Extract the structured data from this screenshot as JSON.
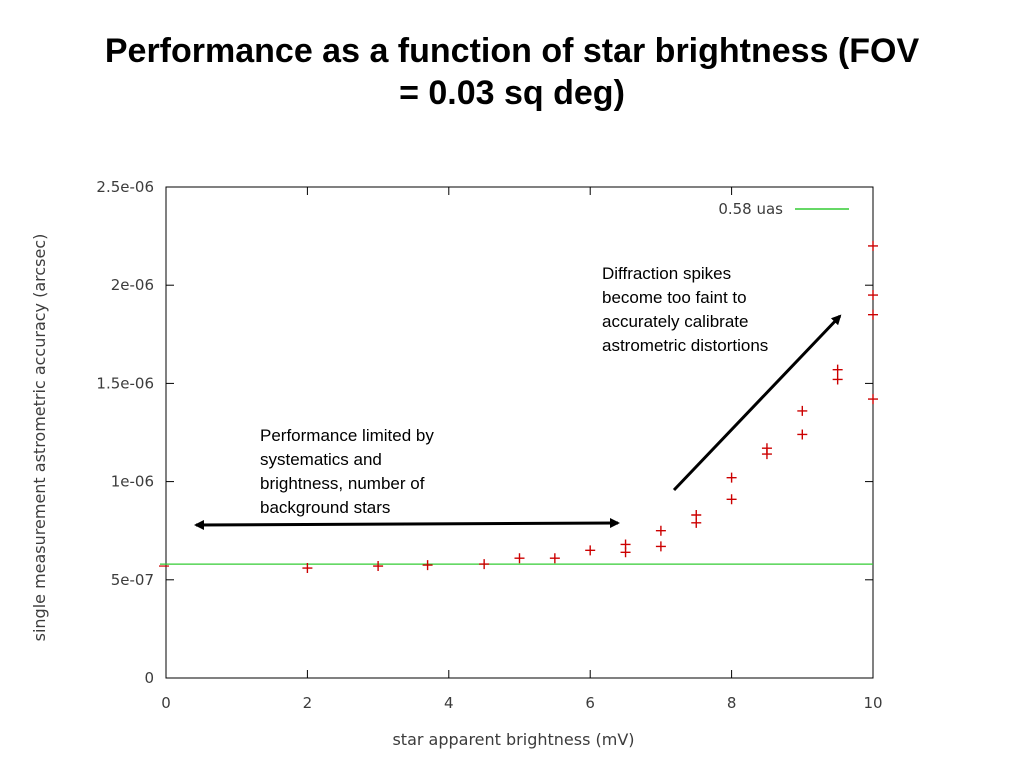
{
  "slide": {
    "title_line1": "Performance as a function of star brightness (FOV",
    "title_line2": "= 0.03 sq deg)"
  },
  "annotations": {
    "diffraction": [
      "Diffraction spikes",
      "become too faint to",
      "accurately calibrate",
      "astrometric distortions"
    ],
    "systematics": [
      "Performance limited by",
      "systematics and",
      "brightness, number of",
      "background stars"
    ]
  },
  "colors": {
    "points": "#cc0000",
    "reference_line": "#33cc33",
    "axes": "#000000",
    "text": "#3c3c3c"
  },
  "chart_data": {
    "type": "scatter",
    "xlabel": "star apparent brightness (mV)",
    "ylabel": "single measurement astrometric accuracy (arcsec)",
    "xlim": [
      0,
      10
    ],
    "ylim": [
      0,
      2.5e-06
    ],
    "x_ticks": [
      0,
      2,
      4,
      6,
      8,
      10
    ],
    "x_tick_labels": [
      "0",
      "2",
      "4",
      "6",
      "8",
      "10"
    ],
    "y_ticks": [
      0,
      5e-07,
      1e-06,
      1.5e-06,
      2e-06,
      2.5e-06
    ],
    "y_tick_labels": [
      "0",
      "5e-07",
      "1e-06",
      "1.5e-06",
      "2e-06",
      "2.5e-06"
    ],
    "legend_position": "top-right",
    "grid": false,
    "reference_line": {
      "name": "0.58 uas",
      "y": 5.8e-07
    },
    "series": [
      {
        "marker": "plus",
        "x": [
          2,
          3,
          3.7,
          4.5,
          5,
          5.5,
          6,
          6.5,
          6.5,
          7,
          7,
          7.5,
          7.5,
          8,
          8,
          8.5,
          8.5,
          9,
          9,
          9.5,
          9.5,
          10,
          10,
          10,
          10
        ],
        "y": [
          5.6e-07,
          5.7e-07,
          5.75e-07,
          5.8e-07,
          6.1e-07,
          6.1e-07,
          6.5e-07,
          6.4e-07,
          6.8e-07,
          6.7e-07,
          7.5e-07,
          7.9e-07,
          8.3e-07,
          9.1e-07,
          1.02e-06,
          1.14e-06,
          1.17e-06,
          1.24e-06,
          1.36e-06,
          1.52e-06,
          1.57e-06,
          1.42e-06,
          1.85e-06,
          1.95e-06,
          2.2e-06
        ]
      }
    ],
    "extra_points_left_edge": {
      "x": [
        0
      ],
      "y": [
        5.7e-07
      ]
    }
  }
}
